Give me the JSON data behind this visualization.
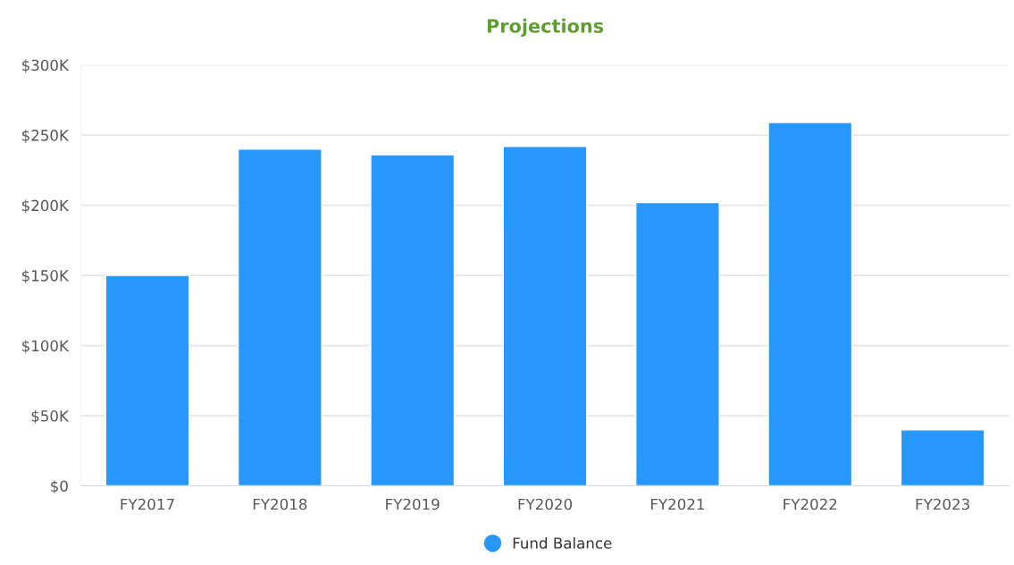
{
  "chart_data": {
    "type": "bar",
    "title": "Projections",
    "categories": [
      "FY2017",
      "FY2018",
      "FY2019",
      "FY2020",
      "FY2021",
      "FY2022",
      "FY2023"
    ],
    "series": [
      {
        "name": "Fund Balance",
        "color": "#2897fb",
        "values": [
          150000,
          240000,
          236000,
          242000,
          202000,
          259000,
          40000
        ]
      }
    ],
    "ylim": [
      0,
      300000
    ],
    "yticks": [
      {
        "value": 0,
        "label": "$0"
      },
      {
        "value": 50000,
        "label": "$50K"
      },
      {
        "value": 100000,
        "label": "$100K"
      },
      {
        "value": 150000,
        "label": "$150K"
      },
      {
        "value": 200000,
        "label": "$200K"
      },
      {
        "value": 250000,
        "label": "$250K"
      },
      {
        "value": 300000,
        "label": "$300K"
      }
    ],
    "grid": "y",
    "legend": "bottom"
  }
}
